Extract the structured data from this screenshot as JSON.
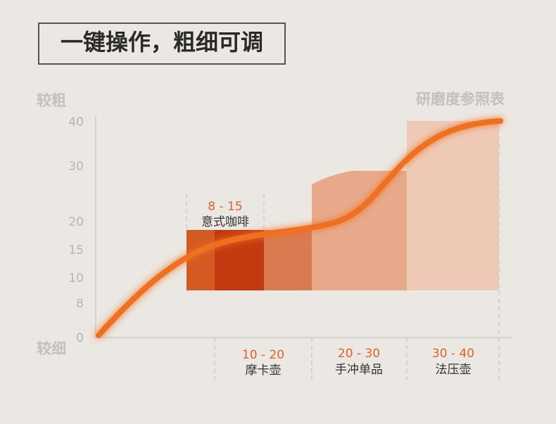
{
  "title": "一键操作，粗细可调",
  "axis": {
    "top_label": "较粗",
    "bottom_label": "较细",
    "ticks": [
      "40",
      "30",
      "20",
      "15",
      "10",
      "8",
      "0"
    ]
  },
  "legend_title": "研磨度参照表",
  "groups": [
    {
      "range": "8 - 15",
      "name": "意式咖啡"
    },
    {
      "range": "10 - 20",
      "name": "摩卡壶"
    },
    {
      "range": "20 - 30",
      "name": "手冲单品"
    },
    {
      "range": "30 - 40",
      "name": "法压壶"
    }
  ]
}
